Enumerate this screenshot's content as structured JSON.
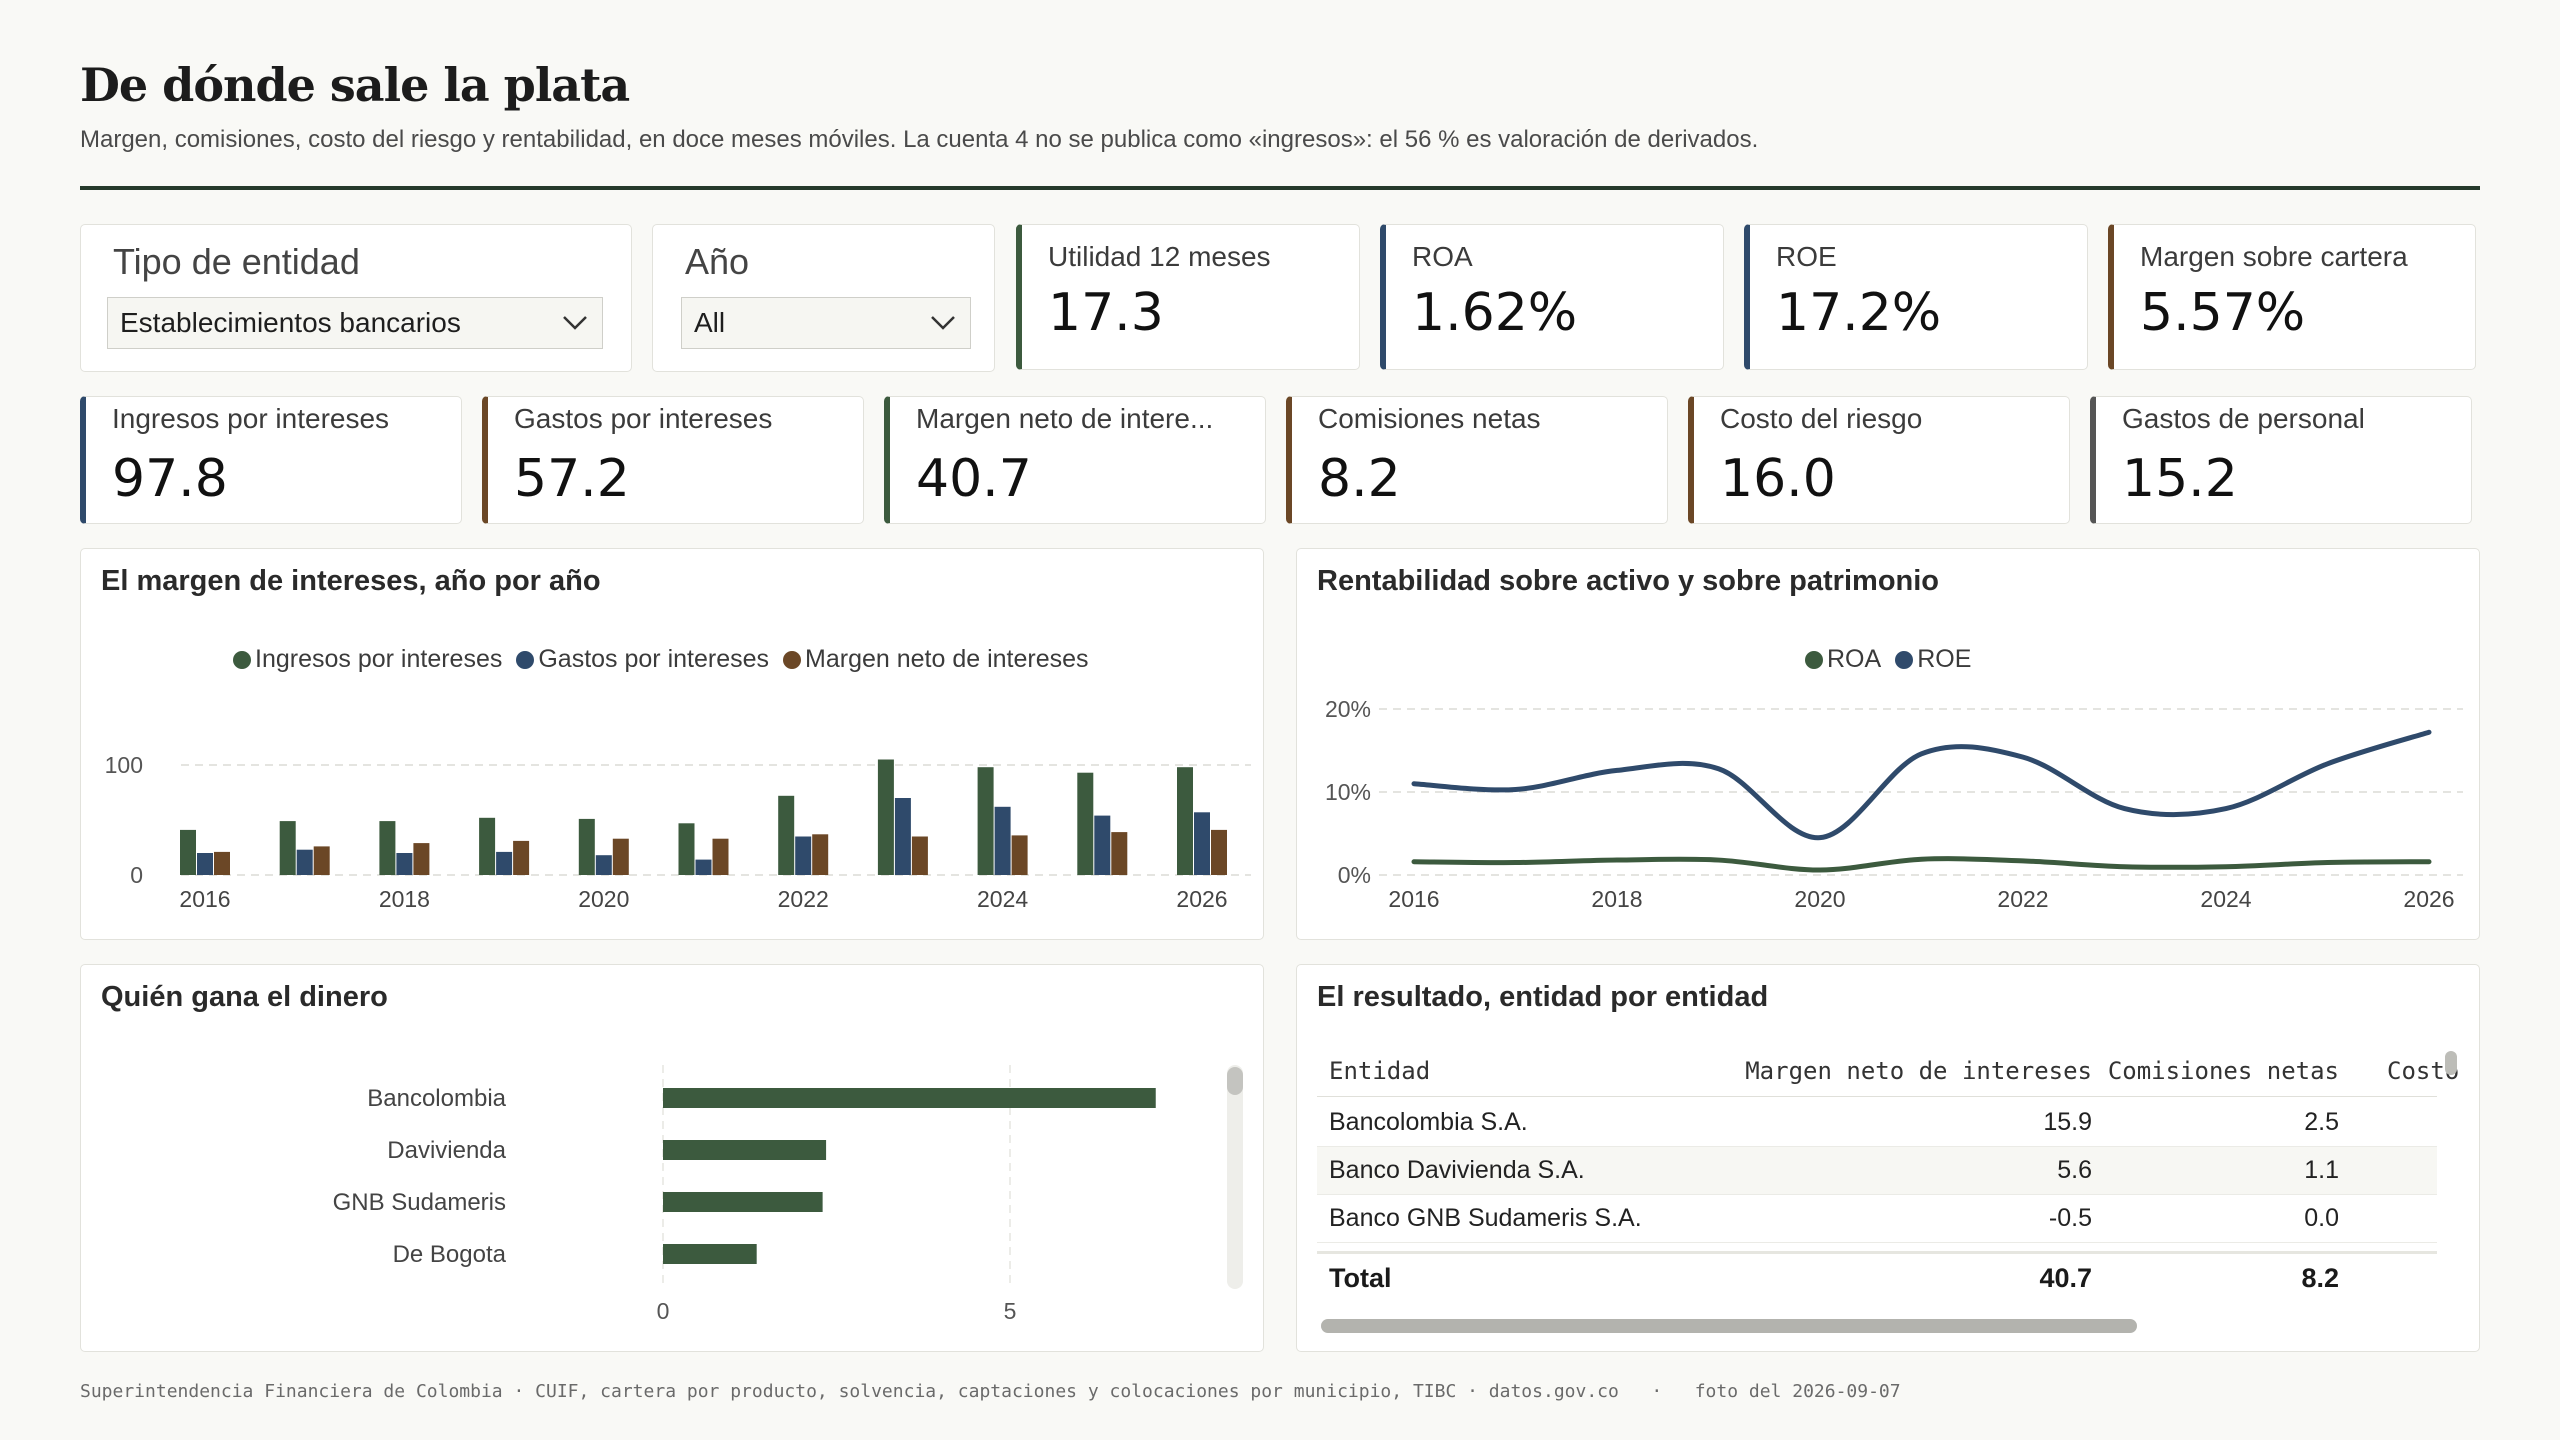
{
  "header": {
    "title": "De dónde sale la plata",
    "subtitle": "Margen, comisiones, costo del riesgo y rentabilidad, en doce meses móviles. La cuenta 4 no se publica como «ingresos»: el 56 % es valoración de derivados."
  },
  "filters": {
    "entity_type": {
      "label": "Tipo de entidad",
      "value": "Establecimientos bancarios"
    },
    "year": {
      "label": "Año",
      "value": "All"
    }
  },
  "kpis_top": [
    {
      "label": "Utilidad 12 meses",
      "value": "17.3",
      "accent": "#3c5a3e"
    },
    {
      "label": "ROA",
      "value": "1.62%",
      "accent": "#2f4a6b"
    },
    {
      "label": "ROE",
      "value": "17.2%",
      "accent": "#2f4a6b"
    },
    {
      "label": "Margen sobre cartera",
      "value": "5.57%",
      "accent": "#6b4726"
    }
  ],
  "kpis_bottom": [
    {
      "label": "Ingresos por intereses",
      "value": "97.8",
      "accent": "#2f4a6b"
    },
    {
      "label": "Gastos por intereses",
      "value": "57.2",
      "accent": "#6b4726"
    },
    {
      "label": "Margen neto de intere...",
      "value": "40.7",
      "accent": "#3c5a3e"
    },
    {
      "label": "Comisiones netas",
      "value": "8.2",
      "accent": "#6b4726"
    },
    {
      "label": "Costo del riesgo",
      "value": "16.0",
      "accent": "#6b4726"
    },
    {
      "label": "Gastos de personal",
      "value": "15.2",
      "accent": "#555555"
    }
  ],
  "panels": {
    "margin": {
      "title": "El margen de intereses, año por año"
    },
    "returns": {
      "title": "Rentabilidad sobre activo y sobre patrimonio"
    },
    "winners": {
      "title": "Quién gana el dinero"
    },
    "results": {
      "title": "El resultado, entidad por entidad"
    }
  },
  "chart_data": [
    {
      "type": "bar",
      "title": "El margen de intereses, año por año",
      "categories": [
        2016,
        2017,
        2018,
        2019,
        2020,
        2021,
        2022,
        2023,
        2024,
        2025,
        2026
      ],
      "series": [
        {
          "name": "Ingresos por intereses",
          "color": "#3c5a3e",
          "values": [
            41,
            49,
            49,
            52,
            51,
            47,
            72,
            105,
            98,
            93,
            98
          ]
        },
        {
          "name": "Gastos por intereses",
          "color": "#2f4a6b",
          "values": [
            20,
            23,
            20,
            21,
            18,
            14,
            35,
            70,
            62,
            54,
            57
          ]
        },
        {
          "name": "Margen neto de intereses",
          "color": "#6b4726",
          "values": [
            21,
            26,
            29,
            31,
            33,
            33,
            37,
            35,
            36,
            39,
            41
          ]
        }
      ],
      "xticks": [
        "2016",
        "2018",
        "2020",
        "2022",
        "2024",
        "2026"
      ],
      "yticks": [
        "0",
        "100"
      ],
      "ylim": [
        0,
        110
      ],
      "legend": "top-center",
      "grid": true
    },
    {
      "type": "line",
      "title": "Rentabilidad sobre activo y sobre patrimonio",
      "x": [
        2016,
        2017,
        2018,
        2019,
        2020,
        2021,
        2022,
        2023,
        2024,
        2025,
        2026
      ],
      "series": [
        {
          "name": "ROA",
          "color": "#3c5a3e",
          "values": [
            1.6,
            1.5,
            1.8,
            1.8,
            0.6,
            1.9,
            1.7,
            1.0,
            1.0,
            1.5,
            1.6
          ]
        },
        {
          "name": "ROE",
          "color": "#2f4a6b",
          "values": [
            11.0,
            10.3,
            12.6,
            12.8,
            4.5,
            14.6,
            14.2,
            8.0,
            8.0,
            13.4,
            17.2
          ]
        }
      ],
      "xticks": [
        "2016",
        "2018",
        "2020",
        "2022",
        "2024",
        "2026"
      ],
      "yticks": [
        "0%",
        "10%",
        "20%"
      ],
      "ylim": [
        0,
        20
      ],
      "legend": "top-center",
      "grid": true
    },
    {
      "type": "bar",
      "orientation": "horizontal",
      "title": "Quién gana el dinero",
      "categories": [
        "Bancolombia",
        "Davivienda",
        "GNB Sudameris",
        "De Bogota"
      ],
      "values": [
        7.1,
        2.35,
        2.3,
        1.35
      ],
      "color": "#3c5a3e",
      "xticks": [
        "0",
        "5"
      ],
      "xlim": [
        0,
        8
      ],
      "grid": true
    }
  ],
  "results_table": {
    "columns": [
      "Entidad",
      "Margen neto de intereses",
      "Comisiones netas",
      "Costo"
    ],
    "rows": [
      {
        "entity": "Bancolombia S.A.",
        "margin": "15.9",
        "commissions": "2.5"
      },
      {
        "entity": "Banco Davivienda S.A.",
        "margin": "5.6",
        "commissions": "1.1"
      },
      {
        "entity": "Banco GNB Sudameris S.A.",
        "margin": "-0.5",
        "commissions": "0.0"
      }
    ],
    "total": {
      "label": "Total",
      "margin": "40.7",
      "commissions": "8.2"
    }
  },
  "footer": {
    "source": "Superintendencia Financiera de Colombia · CUIF, cartera por producto, solvencia, captaciones y colocaciones por municipio, TIBC · datos.gov.co",
    "snapshot": "foto del 2026-09-07"
  }
}
